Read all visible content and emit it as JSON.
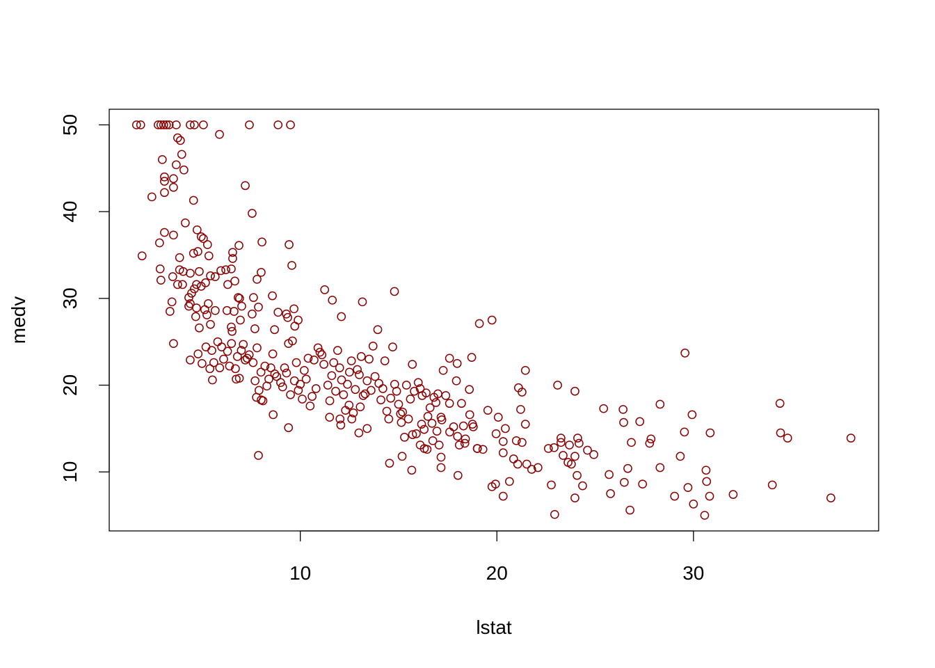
{
  "chart_data": {
    "type": "scatter",
    "title": "",
    "xlabel": "lstat",
    "ylabel": "medv",
    "xlim": [
      0.28,
      39.42
    ],
    "ylim": [
      3.2,
      51.8
    ],
    "xticks": [
      10,
      20,
      30
    ],
    "yticks": [
      10,
      20,
      30,
      40,
      50
    ],
    "grid": false,
    "legend": "none",
    "point_color": "#8B0000",
    "marker": "open-circle",
    "points": [
      [
        1.67,
        50
      ],
      [
        1.88,
        50
      ],
      [
        2.77,
        50
      ],
      [
        2.91,
        50
      ],
      [
        3.05,
        50
      ],
      [
        3.19,
        50
      ],
      [
        3.33,
        50
      ],
      [
        3.69,
        50
      ],
      [
        4.4,
        50
      ],
      [
        4.61,
        50
      ],
      [
        5.07,
        50
      ],
      [
        7.41,
        50
      ],
      [
        8.87,
        50
      ],
      [
        9.5,
        50
      ],
      [
        5.89,
        48.9
      ],
      [
        3.76,
        48.5
      ],
      [
        3.9,
        48.2
      ],
      [
        3.97,
        46.6
      ],
      [
        2.98,
        46.0
      ],
      [
        4.08,
        44.8
      ],
      [
        3.69,
        45.4
      ],
      [
        3.09,
        44.0
      ],
      [
        3.09,
        43.5
      ],
      [
        3.55,
        43.8
      ],
      [
        3.55,
        42.8
      ],
      [
        3.09,
        42.2
      ],
      [
        7.2,
        43.0
      ],
      [
        2.45,
        41.7
      ],
      [
        4.57,
        41.3
      ],
      [
        7.55,
        39.8
      ],
      [
        4.15,
        38.7
      ],
      [
        4.75,
        37.9
      ],
      [
        3.09,
        37.6
      ],
      [
        3.55,
        37.3
      ],
      [
        4.96,
        37.1
      ],
      [
        5.07,
        36.9
      ],
      [
        2.84,
        36.4
      ],
      [
        8.05,
        36.5
      ],
      [
        6.88,
        36.1
      ],
      [
        5.28,
        36.2
      ],
      [
        9.43,
        36.2
      ],
      [
        1.95,
        34.9
      ],
      [
        3.86,
        34.7
      ],
      [
        4.57,
        35.2
      ],
      [
        4.79,
        35.4
      ],
      [
        5.35,
        34.9
      ],
      [
        6.56,
        35.3
      ],
      [
        6.56,
        34.6
      ],
      [
        9.57,
        33.8
      ],
      [
        2.87,
        33.4
      ],
      [
        3.86,
        33.3
      ],
      [
        4.04,
        33.1
      ],
      [
        4.4,
        32.9
      ],
      [
        4.86,
        33.1
      ],
      [
        5.96,
        33.2
      ],
      [
        6.21,
        33.3
      ],
      [
        6.49,
        33.4
      ],
      [
        8.01,
        33.0
      ],
      [
        3.51,
        32.5
      ],
      [
        2.91,
        32.1
      ],
      [
        5.43,
        32.6
      ],
      [
        5.67,
        32.5
      ],
      [
        7.8,
        32.2
      ],
      [
        6.67,
        32.0
      ],
      [
        3.76,
        31.6
      ],
      [
        4.01,
        31.6
      ],
      [
        4.72,
        31.6
      ],
      [
        5.18,
        31.8
      ],
      [
        6.31,
        31.6
      ],
      [
        4.61,
        31.1
      ],
      [
        4.96,
        31.4
      ],
      [
        11.24,
        31.0
      ],
      [
        14.79,
        30.8
      ],
      [
        4.47,
        30.6
      ],
      [
        8.58,
        30.3
      ],
      [
        4.33,
        30.1
      ],
      [
        6.84,
        30.1
      ],
      [
        6.91,
        30.0
      ],
      [
        3.47,
        29.6
      ],
      [
        4.4,
        29.4
      ],
      [
        7.62,
        30.1
      ],
      [
        11.63,
        29.8
      ],
      [
        13.16,
        29.6
      ],
      [
        5.32,
        29.4
      ],
      [
        4.33,
        29.1
      ],
      [
        7.87,
        29.0
      ],
      [
        7.02,
        29.1
      ],
      [
        4.72,
        28.9
      ],
      [
        5.14,
        28.7
      ],
      [
        9.68,
        28.8
      ],
      [
        5.67,
        28.6
      ],
      [
        6.27,
        28.6
      ],
      [
        6.63,
        28.5
      ],
      [
        3.37,
        28.5
      ],
      [
        8.87,
        28.4
      ],
      [
        9.29,
        28.2
      ],
      [
        7.55,
        28.2
      ],
      [
        9.36,
        27.8
      ],
      [
        12.09,
        27.9
      ],
      [
        4.68,
        27.9
      ],
      [
        5.25,
        28.1
      ],
      [
        9.89,
        27.5
      ],
      [
        19.75,
        27.5
      ],
      [
        19.11,
        27.1
      ],
      [
        6.95,
        27.5
      ],
      [
        9.72,
        26.8
      ],
      [
        6.49,
        26.7
      ],
      [
        4.86,
        26.6
      ],
      [
        7.69,
        26.5
      ],
      [
        6.53,
        26.2
      ],
      [
        13.94,
        26.4
      ],
      [
        8.69,
        26.4
      ],
      [
        3.55,
        24.8
      ],
      [
        5.43,
        27.0
      ],
      [
        9.4,
        15.1
      ],
      [
        8.62,
        16.6
      ],
      [
        7.87,
        11.9
      ],
      [
        8.01,
        18.3
      ],
      [
        7.77,
        18.6
      ],
      [
        5.53,
        20.6
      ],
      [
        6.74,
        20.7
      ],
      [
        11.49,
        16.3
      ],
      [
        12.06,
        15.4
      ],
      [
        12.02,
        16.1
      ],
      [
        12.62,
        16.1
      ],
      [
        12.98,
        14.5
      ],
      [
        13.4,
        15.0
      ],
      [
        12.48,
        17.7
      ],
      [
        13.05,
        17.5
      ],
      [
        14.54,
        11.0
      ],
      [
        15.18,
        11.8
      ],
      [
        15.67,
        10.2
      ],
      [
        15.14,
        15.7
      ],
      [
        15.71,
        14.3
      ],
      [
        16.1,
        13.1
      ],
      [
        16.31,
        12.7
      ],
      [
        16.45,
        12.6
      ],
      [
        16.17,
        15.5
      ],
      [
        16.49,
        16.4
      ],
      [
        16.74,
        13.6
      ],
      [
        17.16,
        11.7
      ],
      [
        17.16,
        10.5
      ],
      [
        17.06,
        13.1
      ],
      [
        16.95,
        14.7
      ],
      [
        17.16,
        16.3
      ],
      [
        17.59,
        17.9
      ],
      [
        18.09,
        13.1
      ],
      [
        18.02,
        9.6
      ],
      [
        18.37,
        13.3
      ],
      [
        18.3,
        15.3
      ],
      [
        17.59,
        23.1
      ],
      [
        17.27,
        21.7
      ],
      [
        17.98,
        22.5
      ],
      [
        17.94,
        20.5
      ],
      [
        18.72,
        23.2
      ],
      [
        18.62,
        16.6
      ],
      [
        18.76,
        15.5
      ],
      [
        19.01,
        12.7
      ],
      [
        19.29,
        12.6
      ],
      [
        19.54,
        17.1
      ],
      [
        19.96,
        14.4
      ],
      [
        20.07,
        16.3
      ],
      [
        20.43,
        15.0
      ],
      [
        19.75,
        8.3
      ],
      [
        19.93,
        8.6
      ],
      [
        20.32,
        7.2
      ],
      [
        20.32,
        12.2
      ],
      [
        20.32,
        13.5
      ],
      [
        20.64,
        8.9
      ],
      [
        20.85,
        11.5
      ],
      [
        20.99,
        13.6
      ],
      [
        21.06,
        10.9
      ],
      [
        21.1,
        19.7
      ],
      [
        21.28,
        19.2
      ],
      [
        21.21,
        17.2
      ],
      [
        21.28,
        13.4
      ],
      [
        21.45,
        15.5
      ],
      [
        21.45,
        21.7
      ],
      [
        21.52,
        10.9
      ],
      [
        21.77,
        10.3
      ],
      [
        22.09,
        10.5
      ],
      [
        22.62,
        12.7
      ],
      [
        22.91,
        12.8
      ],
      [
        22.77,
        8.5
      ],
      [
        22.94,
        5.1
      ],
      [
        23.09,
        20.0
      ],
      [
        23.26,
        13.9
      ],
      [
        23.26,
        13.4
      ],
      [
        23.37,
        11.9
      ],
      [
        23.62,
        11.1
      ],
      [
        23.79,
        10.9
      ],
      [
        23.69,
        13.1
      ],
      [
        23.97,
        19.3
      ],
      [
        23.97,
        7.0
      ],
      [
        24.08,
        9.6
      ],
      [
        24.11,
        13.9
      ],
      [
        24.18,
        13.3
      ],
      [
        23.97,
        11.8
      ],
      [
        24.36,
        8.4
      ],
      [
        24.61,
        12.5
      ],
      [
        24.93,
        12.0
      ],
      [
        25.43,
        17.3
      ],
      [
        25.71,
        9.7
      ],
      [
        25.78,
        7.5
      ],
      [
        26.42,
        17.2
      ],
      [
        26.45,
        15.7
      ],
      [
        26.48,
        8.8
      ],
      [
        26.66,
        10.4
      ],
      [
        26.77,
        5.6
      ],
      [
        26.84,
        13.4
      ],
      [
        27.27,
        15.8
      ],
      [
        27.41,
        8.6
      ],
      [
        27.77,
        13.3
      ],
      [
        27.84,
        13.8
      ],
      [
        28.3,
        17.8
      ],
      [
        28.3,
        10.5
      ],
      [
        29.04,
        7.2
      ],
      [
        29.33,
        11.8
      ],
      [
        29.54,
        14.6
      ],
      [
        29.57,
        23.7
      ],
      [
        29.72,
        8.2
      ],
      [
        29.93,
        16.6
      ],
      [
        30.0,
        6.3
      ],
      [
        30.57,
        5.0
      ],
      [
        30.64,
        10.2
      ],
      [
        30.67,
        8.9
      ],
      [
        30.82,
        7.2
      ],
      [
        30.85,
        14.5
      ],
      [
        32.02,
        7.4
      ],
      [
        34.01,
        8.5
      ],
      [
        34.4,
        17.9
      ],
      [
        34.43,
        14.5
      ],
      [
        34.79,
        13.9
      ],
      [
        36.99,
        7.0
      ],
      [
        38.01,
        13.9
      ],
      [
        5.5,
        24.0
      ],
      [
        5.8,
        25.0
      ],
      [
        6.0,
        24.4
      ],
      [
        6.3,
        23.9
      ],
      [
        6.5,
        24.8
      ],
      [
        6.8,
        23.3
      ],
      [
        7.0,
        24.0
      ],
      [
        7.2,
        22.9
      ],
      [
        7.4,
        23.5
      ],
      [
        7.6,
        22.6
      ],
      [
        7.8,
        24.3
      ],
      [
        8.0,
        21.5
      ],
      [
        8.2,
        22.2
      ],
      [
        8.4,
        20.7
      ],
      [
        8.6,
        23.6
      ],
      [
        8.8,
        21.0
      ],
      [
        9.0,
        20.3
      ],
      [
        9.2,
        22.0
      ],
      [
        9.4,
        24.8
      ],
      [
        9.6,
        25.1
      ],
      [
        9.8,
        22.6
      ],
      [
        10.0,
        20.1
      ],
      [
        10.2,
        21.7
      ],
      [
        10.4,
        23.1
      ],
      [
        10.6,
        18.7
      ],
      [
        10.8,
        19.6
      ],
      [
        11.0,
        23.8
      ],
      [
        11.2,
        22.4
      ],
      [
        11.4,
        20.0
      ],
      [
        11.6,
        21.1
      ],
      [
        11.8,
        19.3
      ],
      [
        12.0,
        22.0
      ],
      [
        12.2,
        18.9
      ],
      [
        12.4,
        20.1
      ],
      [
        12.6,
        22.8
      ],
      [
        12.8,
        19.5
      ],
      [
        13.0,
        21.2
      ],
      [
        13.2,
        18.8
      ],
      [
        13.4,
        20.5
      ],
      [
        13.6,
        19.4
      ],
      [
        13.8,
        21.0
      ],
      [
        14.0,
        20.2
      ],
      [
        14.2,
        19.6
      ],
      [
        14.4,
        17.0
      ],
      [
        14.6,
        18.5
      ],
      [
        14.8,
        20.1
      ],
      [
        15.0,
        17.8
      ],
      [
        15.2,
        16.9
      ],
      [
        15.4,
        20.0
      ],
      [
        15.6,
        18.4
      ],
      [
        15.8,
        19.3
      ],
      [
        16.0,
        20.3
      ],
      [
        16.2,
        18.8
      ],
      [
        16.4,
        19.1
      ],
      [
        16.6,
        17.4
      ],
      [
        16.8,
        18.6
      ],
      [
        17.0,
        19.0
      ],
      [
        4.4,
        22.9
      ],
      [
        4.8,
        23.6
      ],
      [
        5.0,
        22.5
      ],
      [
        5.2,
        24.4
      ],
      [
        5.4,
        21.9
      ],
      [
        5.6,
        22.6
      ],
      [
        5.9,
        22.0
      ],
      [
        6.1,
        23.0
      ],
      [
        6.4,
        22.2
      ],
      [
        6.7,
        21.9
      ],
      [
        6.9,
        20.8
      ],
      [
        7.1,
        24.7
      ],
      [
        7.3,
        23.1
      ],
      [
        7.7,
        20.5
      ],
      [
        7.9,
        19.4
      ],
      [
        8.1,
        18.2
      ],
      [
        8.3,
        19.9
      ],
      [
        8.5,
        22.0
      ],
      [
        8.7,
        21.3
      ],
      [
        9.1,
        19.8
      ],
      [
        9.3,
        21.4
      ],
      [
        9.5,
        18.9
      ],
      [
        9.7,
        20.5
      ],
      [
        9.9,
        19.4
      ],
      [
        10.1,
        18.4
      ],
      [
        10.3,
        20.7
      ],
      [
        10.5,
        17.6
      ],
      [
        10.7,
        22.9
      ],
      [
        10.9,
        24.3
      ],
      [
        11.1,
        23.5
      ],
      [
        11.5,
        18.2
      ],
      [
        11.7,
        22.6
      ],
      [
        11.9,
        24.0
      ],
      [
        12.1,
        20.6
      ],
      [
        12.3,
        17.1
      ],
      [
        12.5,
        21.5
      ],
      [
        12.7,
        16.8
      ],
      [
        12.9,
        21.8
      ],
      [
        13.1,
        23.3
      ],
      [
        13.3,
        19.0
      ],
      [
        13.5,
        23.0
      ],
      [
        13.7,
        24.5
      ],
      [
        14.1,
        18.3
      ],
      [
        14.3,
        22.8
      ],
      [
        14.5,
        16.1
      ],
      [
        14.7,
        24.4
      ],
      [
        14.9,
        19.3
      ],
      [
        15.1,
        16.7
      ],
      [
        15.3,
        14.0
      ],
      [
        15.5,
        16.1
      ],
      [
        15.7,
        22.4
      ],
      [
        15.9,
        14.4
      ],
      [
        16.1,
        19.6
      ],
      [
        16.3,
        14.9
      ],
      [
        16.7,
        15.6
      ],
      [
        16.9,
        18.0
      ],
      [
        17.2,
        16.0
      ],
      [
        17.4,
        18.8
      ],
      [
        17.6,
        14.6
      ],
      [
        17.8,
        15.2
      ],
      [
        18.0,
        14.1
      ],
      [
        18.2,
        17.9
      ],
      [
        18.4,
        13.8
      ],
      [
        18.6,
        19.5
      ],
      [
        18.8,
        15.2
      ],
      [
        19.0,
        12.7
      ]
    ]
  }
}
